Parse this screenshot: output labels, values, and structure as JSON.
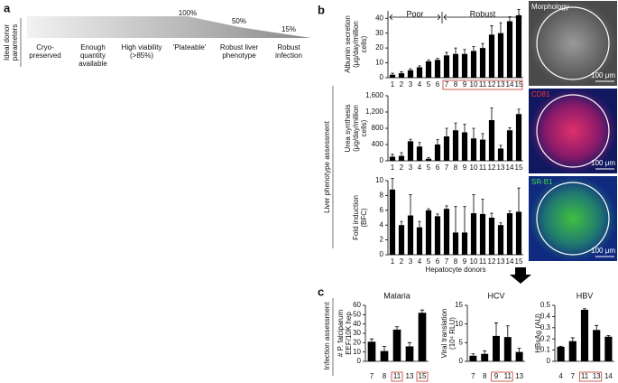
{
  "panel_labels": [
    "a",
    "b",
    "c"
  ],
  "panel_a": {
    "side_label": [
      "Ideal donor",
      "parameters"
    ],
    "levels": [
      {
        "value": 100,
        "label": "100%"
      },
      {
        "value": 50,
        "label": "50%"
      },
      {
        "value": 15,
        "label": "15%"
      }
    ],
    "steps": [
      [
        "Cryo-",
        "preserved"
      ],
      [
        "Enough",
        "quantity",
        "available"
      ],
      [
        "High viability",
        "(>85%)"
      ],
      [
        "'Plateable'"
      ],
      [
        "Robust liver",
        "phenotype"
      ],
      [
        "Robust",
        "infection"
      ]
    ]
  },
  "section_labels": [
    "Liver phenotype assessment",
    "Infection assessment"
  ],
  "annotations": [
    "Poor",
    "Robust"
  ],
  "images": [
    {
      "label": "Morphology",
      "scale": "100 μm"
    },
    {
      "label": "CD81",
      "scale": "100 μm"
    },
    {
      "label": "SR-B1",
      "scale": "100 μm"
    }
  ],
  "chart_data": [
    {
      "type": "bar",
      "color": "#000000",
      "y_label": [
        "Albumin secretion",
        "(μg/day/million",
        "cells)"
      ],
      "categories": [
        "1",
        "2",
        "3",
        "4",
        "5",
        "6",
        "7",
        "8",
        "9",
        "10",
        "11",
        "12",
        "13",
        "14",
        "15"
      ],
      "values": [
        2,
        3,
        5,
        7,
        11,
        12,
        15,
        16,
        16,
        18,
        20,
        29,
        30,
        38,
        42
      ],
      "errors": [
        1,
        1,
        1,
        1,
        1,
        1,
        2,
        4,
        3,
        3,
        3,
        6,
        7,
        3,
        4
      ],
      "highlight": [
        false,
        false,
        false,
        false,
        false,
        false,
        true,
        true,
        true,
        true,
        true,
        true,
        true,
        true,
        true
      ],
      "ylim": [
        0,
        45
      ],
      "yticks": [
        0,
        10,
        20,
        30,
        40
      ]
    },
    {
      "type": "bar",
      "color": "#000000",
      "y_label": [
        "Urea synthesis",
        "(μg/day/million",
        "cells)"
      ],
      "categories": [
        "1",
        "2",
        "3",
        "4",
        "5",
        "6",
        "7",
        "8",
        "9",
        "10",
        "11",
        "12",
        "13",
        "14",
        "15"
      ],
      "values": [
        100,
        120,
        480,
        350,
        50,
        400,
        600,
        750,
        700,
        550,
        520,
        1000,
        300,
        750,
        1150
      ],
      "errors": [
        60,
        80,
        50,
        100,
        30,
        120,
        200,
        180,
        200,
        250,
        150,
        300,
        80,
        60,
        120
      ],
      "ylim": [
        0,
        1600
      ],
      "yticks": [
        0,
        400,
        800,
        {
          "value": 1200,
          "label": "1,200"
        },
        {
          "value": 1600,
          "label": "1,600"
        }
      ]
    },
    {
      "type": "bar",
      "color": "#000000",
      "y_label": [
        "Fold induction",
        "(BFC)"
      ],
      "x_label": "Hepatocyte donors",
      "categories": [
        "1",
        "2",
        "3",
        "4",
        "5",
        "6",
        "7",
        "8",
        "9",
        "10",
        "11",
        "12",
        "13",
        "14",
        "15"
      ],
      "values": [
        8.8,
        4,
        5.3,
        3.7,
        6,
        5.2,
        6.2,
        3,
        3,
        5.6,
        5.5,
        5,
        4,
        5.6,
        5.8
      ],
      "errors": [
        1.5,
        0.5,
        2.8,
        0.8,
        0.2,
        0.3,
        0.4,
        3.5,
        3.5,
        2.5,
        2,
        0.6,
        0.3,
        0.3,
        3.2
      ],
      "ylim": [
        0,
        10
      ],
      "yticks": [
        0,
        2,
        4,
        6,
        8,
        10
      ]
    },
    {
      "type": "bar",
      "color": "#000000",
      "title": "Malaria",
      "y_label": [
        "# P. falciparum",
        "EEF/10K hep"
      ],
      "categories": [
        "7",
        "8",
        "11",
        "13",
        "15"
      ],
      "values": [
        21,
        11,
        34,
        16,
        52
      ],
      "errors": [
        3,
        5,
        3,
        4,
        3
      ],
      "highlight": [
        false,
        false,
        true,
        false,
        true
      ],
      "ylim": [
        0,
        60
      ],
      "yticks": [
        0,
        10,
        20,
        30,
        40,
        50,
        60
      ]
    },
    {
      "type": "bar",
      "color": "#000000",
      "title": "HCV",
      "y_label": [
        "Viral translation",
        "(10⁴ RLU)"
      ],
      "categories": [
        "7",
        "8",
        "9",
        "11",
        "13"
      ],
      "values": [
        1.5,
        2,
        6.8,
        6.5,
        2.5
      ],
      "errors": [
        0.5,
        0.8,
        3.5,
        3,
        1
      ],
      "highlight": [
        false,
        false,
        true,
        true,
        false
      ],
      "ylim": [
        0,
        15
      ],
      "yticks": [
        0,
        5,
        10,
        15
      ]
    },
    {
      "type": "bar",
      "color": "#000000",
      "title": "HBV",
      "y_label": [
        "HBsAg (AU)"
      ],
      "categories": [
        "4",
        "7",
        "11",
        "13",
        "14"
      ],
      "values": [
        0.13,
        0.18,
        0.46,
        0.28,
        0.22
      ],
      "errors": [
        0.005,
        0.03,
        0.01,
        0.04,
        0.01
      ],
      "highlight": [
        false,
        false,
        true,
        true,
        false
      ],
      "ylim": [
        0,
        0.5
      ],
      "yticks": [
        0,
        0.1,
        0.2,
        0.3,
        0.4,
        0.5
      ]
    }
  ]
}
